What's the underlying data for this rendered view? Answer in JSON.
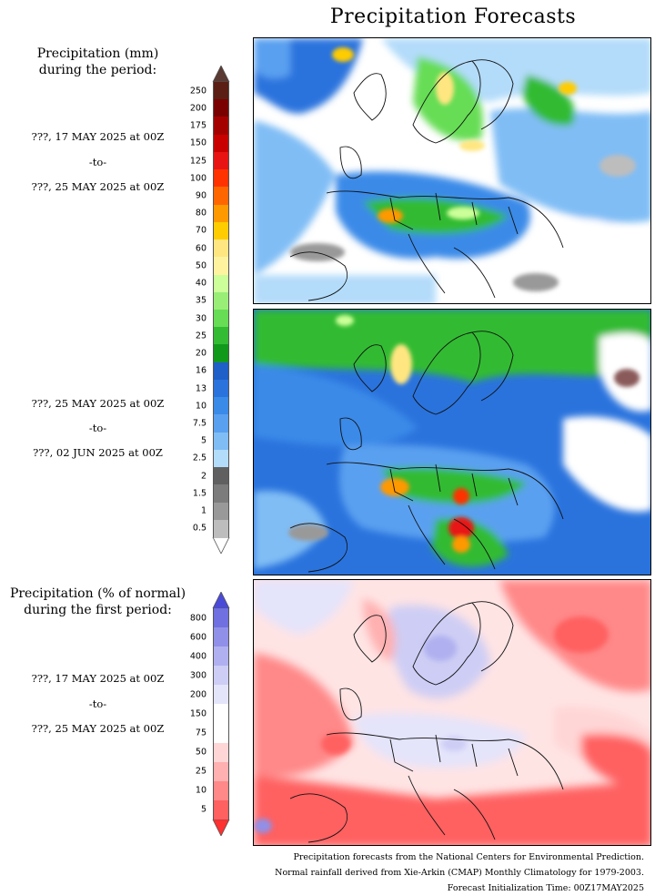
{
  "title": "Precipitation Forecasts",
  "amount_legend": {
    "heading_line1": "Precipitation (mm)",
    "heading_line2": "during the period:",
    "labels": [
      "250",
      "200",
      "175",
      "150",
      "125",
      "100",
      "90",
      "80",
      "70",
      "60",
      "50",
      "40",
      "35",
      "30",
      "25",
      "20",
      "16",
      "13",
      "10",
      "7.5",
      "5",
      "2.5",
      "2",
      "1.5",
      "1",
      "0.5"
    ],
    "colors": [
      "#5a1e14",
      "#7a0000",
      "#a40000",
      "#c80000",
      "#e81414",
      "#ff3300",
      "#ff6600",
      "#ff9900",
      "#ffcc00",
      "#ffe680",
      "#fff3a0",
      "#ccff99",
      "#99ee77",
      "#66dd55",
      "#33bb33",
      "#11991c",
      "#1f5fc8",
      "#2a73dd",
      "#3a8ae8",
      "#5aa0f0",
      "#80bdf5",
      "#b3dcfa",
      "#606060",
      "#7c7c7c",
      "#999999",
      "#bdbdbd"
    ],
    "top_arrow_color": "#5a3a32"
  },
  "period1": {
    "start": "???, 17 MAY 2025 at 00Z",
    "sep": "-to-",
    "end": "???, 25 MAY 2025 at 00Z"
  },
  "period2": {
    "start": "???, 25 MAY 2025 at 00Z",
    "sep": "-to-",
    "end": "???, 02 JUN 2025 at 00Z"
  },
  "percent_legend": {
    "heading_line1": "Precipitation (% of normal)",
    "heading_line2": "during the first period:",
    "labels": [
      "800",
      "600",
      "400",
      "300",
      "200",
      "150",
      "75",
      "50",
      "25",
      "10",
      "5"
    ],
    "colors": [
      "#7070e0",
      "#9090e8",
      "#b0b0f0",
      "#cdcdf5",
      "#e4e4fb",
      "#ffffff",
      "#ffffff",
      "#ffd6d6",
      "#ffb0b0",
      "#ff8888",
      "#ff6060"
    ],
    "top_arrow_color": "#4a4ad8",
    "bottom_arrow_color": "#ff3030"
  },
  "period3": {
    "start": "???, 17 MAY 2025 at 00Z",
    "sep": "-to-",
    "end": "???, 25 MAY 2025 at 00Z"
  },
  "footer": {
    "line1": "Precipitation forecasts from the National Centers for Environmental Prediction.",
    "line2": "Normal rainfall derived from Xie-Arkin (CMAP) Monthly Climatology for 1979-2003.",
    "line3": "Forecast Initialization Time: 00Z17MAY2025"
  }
}
